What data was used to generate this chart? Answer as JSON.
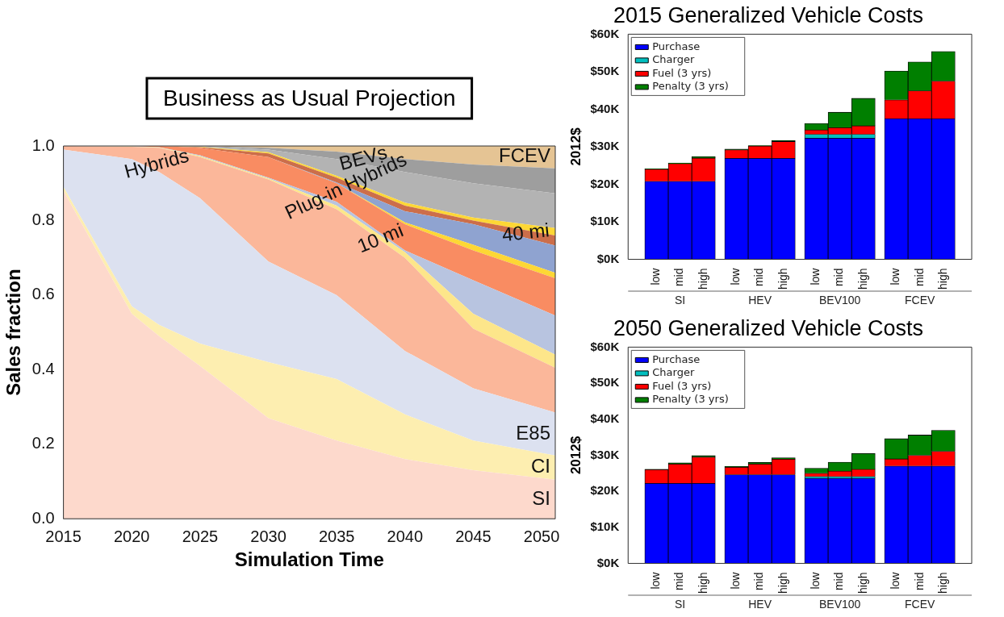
{
  "chart_data": [
    {
      "type": "area",
      "title": "Business as Usual Projection",
      "xlabel": "Simulation Time",
      "ylabel": "Sales fraction",
      "stacked": true,
      "x": [
        2015,
        2020,
        2022,
        2025,
        2030,
        2035,
        2040,
        2045,
        2051
      ],
      "xlim": [
        2015,
        2051
      ],
      "xticks": [
        2015,
        2020,
        2025,
        2030,
        2035,
        2040,
        2045,
        2050
      ],
      "ylim": [
        0,
        1
      ],
      "yticks": [
        {
          "value": 0,
          "label": "0.0"
        },
        0.2,
        0.4,
        0.6,
        0.8,
        {
          "value": 1,
          "label": "1.0"
        }
      ],
      "series": [
        {
          "name": "SI",
          "color": "#fdd9cc",
          "values": [
            0.88,
            0.55,
            0.49,
            0.41,
            0.27,
            0.21,
            0.16,
            0.13,
            0.105
          ]
        },
        {
          "name": "CI",
          "color": "#fdeeb0",
          "values": [
            0.01,
            0.02,
            0.03,
            0.06,
            0.15,
            0.165,
            0.12,
            0.08,
            0.065
          ]
        },
        {
          "name": "E85",
          "color": "#dce1f0",
          "values": [
            0.1,
            0.395,
            0.41,
            0.39,
            0.27,
            0.225,
            0.17,
            0.14,
            0.115
          ]
        },
        {
          "color": "#fbb79a",
          "values": [
            0.01,
            0.033,
            0.065,
            0.11,
            0.22,
            0.23,
            0.25,
            0.16,
            0.12
          ]
        },
        {
          "color": "#fde68a",
          "values": [
            0,
            0.001,
            0.001,
            0.003,
            0.003,
            0.01,
            0.015,
            0.04,
            0.035
          ]
        },
        {
          "color": "#b8c4e0",
          "values": [
            0,
            0.001,
            0.001,
            0.002,
            0.002,
            0.01,
            0.005,
            0.09,
            0.105
          ]
        },
        {
          "color": "#f98c62",
          "values": [
            0,
            0,
            0.003,
            0.02,
            0.055,
            0.05,
            0.07,
            0.08,
            0.1
          ]
        },
        {
          "color": "#fdd735",
          "values": [
            0,
            0,
            0,
            0,
            0,
            0,
            0.005,
            0.015,
            0.015
          ]
        },
        {
          "color": "#8fa3d0",
          "values": [
            0,
            0,
            0,
            0,
            0,
            0.002,
            0.03,
            0.055,
            0.073
          ]
        },
        {
          "color": "#cc6e4a",
          "values": [
            0,
            0,
            0,
            0.002,
            0.01,
            0.013,
            0.015,
            0.01,
            0.027
          ]
        },
        {
          "color": "#fdd735",
          "values": [
            0,
            0,
            0,
            0.001,
            0.003,
            0.005,
            0.008,
            0.008,
            0.02
          ]
        },
        {
          "color": "#b3b3b3",
          "values": [
            0,
            0,
            0,
            0.001,
            0.007,
            0.045,
            0.082,
            0.092,
            0.093
          ]
        },
        {
          "color": "#9e9e9e",
          "values": [
            0,
            0,
            0,
            0.001,
            0.005,
            0.02,
            0.035,
            0.05,
            0.067
          ]
        },
        {
          "name": "FCEV",
          "color": "#e5c494",
          "values": [
            0,
            0,
            0,
            0,
            0.005,
            0.015,
            0.035,
            0.05,
            0.06
          ]
        }
      ],
      "annotations": [
        "Hybrids",
        "BEVs",
        "Plug-in Hybrids",
        "10 mi",
        "40 mi"
      ],
      "legend": false,
      "grid": false
    },
    {
      "type": "bar",
      "stacked": true,
      "title": "2015 Generalized Vehicle Costs",
      "ylabel": "2012$",
      "categories": [
        "low",
        "mid",
        "high",
        "low",
        "mid",
        "high",
        "low",
        "mid",
        "high",
        "low",
        "mid",
        "high"
      ],
      "ylim": [
        0,
        60000
      ],
      "yticks": [
        {
          "value": 0,
          "label": "$0K"
        },
        {
          "value": 10000,
          "label": "$10K"
        },
        {
          "value": 20000,
          "label": "$20K"
        },
        {
          "value": 30000,
          "label": "$30K"
        },
        {
          "value": 40000,
          "label": "$40K"
        },
        {
          "value": 50000,
          "label": "$50K"
        },
        {
          "value": 60000,
          "label": "$60K"
        }
      ],
      "series": [
        {
          "name": "Purchase",
          "color": "#0000ff",
          "values": [
            20800,
            20800,
            20800,
            26900,
            26900,
            26900,
            32300,
            32300,
            32300,
            37500,
            37500,
            37500
          ]
        },
        {
          "name": "Charger",
          "color": "#00bfbf",
          "values": [
            null,
            null,
            null,
            null,
            null,
            null,
            1000,
            1000,
            1000,
            null,
            null,
            null
          ]
        },
        {
          "name": "Fuel (3 yrs)",
          "color": "#ff0000",
          "values": [
            3200,
            4700,
            6200,
            2300,
            3300,
            4500,
            1200,
            1800,
            2300,
            5000,
            7400,
            10000
          ]
        },
        {
          "name": "Penalty (3 yrs)",
          "color": "#007f00",
          "values": [
            100,
            200,
            400,
            200,
            100,
            300,
            1700,
            4100,
            7300,
            7700,
            7700,
            7900
          ]
        }
      ],
      "annotations": [
        "SI",
        "HEV",
        "BEV100",
        "FCEV"
      ],
      "legend": "top left",
      "grid": false
    },
    {
      "type": "bar",
      "stacked": true,
      "title": "2050 Generalized Vehicle Costs",
      "ylabel": "2012$",
      "categories": [
        "low",
        "mid",
        "high",
        "low",
        "mid",
        "high",
        "low",
        "mid",
        "high",
        "low",
        "mid",
        "high"
      ],
      "ylim": [
        0,
        60000
      ],
      "yticks": [
        {
          "value": 0,
          "label": "$0K"
        },
        {
          "value": 10000,
          "label": "$10K"
        },
        {
          "value": 20000,
          "label": "$20K"
        },
        {
          "value": 30000,
          "label": "$30K"
        },
        {
          "value": 40000,
          "label": "$40K"
        },
        {
          "value": 50000,
          "label": "$50K"
        },
        {
          "value": 60000,
          "label": "$60K"
        }
      ],
      "series": [
        {
          "name": "Purchase",
          "color": "#0000ff",
          "values": [
            22200,
            22200,
            22200,
            24600,
            24600,
            24600,
            23600,
            23600,
            23600,
            27000,
            27000,
            27000
          ]
        },
        {
          "name": "Charger",
          "color": "#00bfbf",
          "values": [
            null,
            null,
            null,
            null,
            null,
            null,
            500,
            500,
            500,
            null,
            null,
            null
          ]
        },
        {
          "name": "Fuel (3 yrs)",
          "color": "#ff0000",
          "values": [
            3800,
            5400,
            7300,
            2100,
            3000,
            4300,
            900,
            1500,
            2000,
            2000,
            3000,
            4100
          ]
        },
        {
          "name": "Penalty (3 yrs)",
          "color": "#007f00",
          "values": [
            100,
            300,
            400,
            200,
            400,
            400,
            1400,
            2500,
            4400,
            5600,
            5600,
            5800
          ]
        }
      ],
      "annotations": [
        "SI",
        "HEV",
        "BEV100",
        "FCEV"
      ],
      "legend": "top left",
      "grid": false
    }
  ]
}
